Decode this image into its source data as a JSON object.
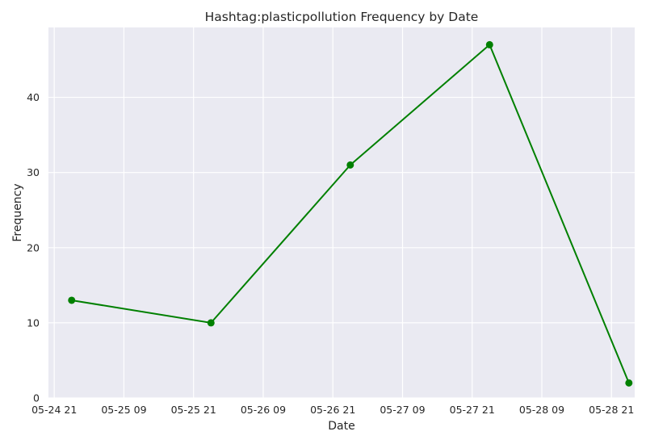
{
  "chart_data": {
    "type": "line",
    "title": "Hashtag:plasticpollution Frequency by Date",
    "xlabel": "Date",
    "ylabel": "Frequency",
    "x_ticks": [
      "05-24 21",
      "05-25 09",
      "05-25 21",
      "05-26 09",
      "05-26 21",
      "05-27 09",
      "05-27 21",
      "05-28 09",
      "05-28 21"
    ],
    "x_tick_values": [
      "2023-05-24 21:00",
      "2023-05-25 09:00",
      "2023-05-25 21:00",
      "2023-05-26 09:00",
      "2023-05-26 21:00",
      "2023-05-27 09:00",
      "2023-05-27 21:00",
      "2023-05-28 09:00",
      "2023-05-28 21:00"
    ],
    "xlim": [
      "2023-05-24 20:00",
      "2023-05-29 01:00"
    ],
    "y_ticks": [
      0,
      10,
      20,
      30,
      40
    ],
    "ylim": [
      0,
      49.3
    ],
    "grid": true,
    "series": [
      {
        "color": "#008000",
        "marker": "circle",
        "x": [
          "2023-05-25 00:00",
          "2023-05-26 00:00",
          "2023-05-27 00:00",
          "2023-05-28 00:00",
          "2023-05-29 00:00"
        ],
        "y": [
          13,
          10,
          31,
          47,
          2
        ]
      }
    ],
    "colors": {
      "plot_background": "#eaeaf2",
      "grid": "#ffffff",
      "text": "#262626"
    }
  }
}
